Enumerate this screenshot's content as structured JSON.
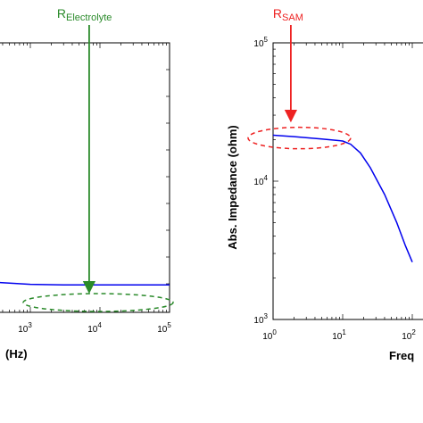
{
  "chart_data": [
    {
      "type": "line",
      "title": "",
      "xlabel": "(Hz)",
      "ylabel": "",
      "xscale": "log",
      "xlim": [
        1,
        100000
      ],
      "x_ticks": [
        {
          "value": 1000,
          "base": "10",
          "exp": "3"
        },
        {
          "value": 10000,
          "base": "10",
          "exp": "4"
        },
        {
          "value": 100000,
          "base": "10",
          "exp": "5"
        }
      ],
      "series": [
        {
          "color": "#0000ee",
          "x": [
            10,
            30,
            100,
            300,
            1000,
            3000,
            10000,
            30000,
            100000
          ],
          "y": [
            0.78,
            0.7,
            0.62,
            0.56,
            0.52,
            0.51,
            0.51,
            0.51,
            0.51
          ]
        }
      ],
      "annotation": {
        "label_main": "R",
        "label_sub": "Electrolyte",
        "color": "#2a8a2a",
        "x": 7000,
        "ellipse_x": [
          1000,
          100000
        ]
      }
    },
    {
      "type": "line",
      "title": "",
      "xlabel": "Freq",
      "ylabel": "Abs. Impedance  (ohm)",
      "xscale": "log",
      "yscale": "log",
      "xlim": [
        1,
        100
      ],
      "ylim": [
        1000,
        100000
      ],
      "x_ticks": [
        {
          "value": 1,
          "base": "10",
          "exp": "0"
        },
        {
          "value": 10,
          "base": "10",
          "exp": "1"
        },
        {
          "value": 100,
          "base": "10",
          "exp": "2"
        }
      ],
      "y_ticks": [
        {
          "value": 1000,
          "base": "10",
          "exp": "3"
        },
        {
          "value": 10000,
          "base": "10",
          "exp": "4"
        },
        {
          "value": 100000,
          "base": "10",
          "exp": "5"
        }
      ],
      "series": [
        {
          "color": "#0000ee",
          "x": [
            1,
            2,
            5,
            10,
            13,
            18,
            25,
            40,
            60,
            80,
            100
          ],
          "y": [
            21500,
            21000,
            20200,
            19500,
            18500,
            16000,
            12500,
            8000,
            5000,
            3400,
            2600
          ]
        }
      ],
      "annotation": {
        "label_main": "R",
        "label_sub": "SAM",
        "color": "#ee2222",
        "x": 1.8,
        "ellipse_x": [
          1,
          13
        ]
      }
    }
  ]
}
